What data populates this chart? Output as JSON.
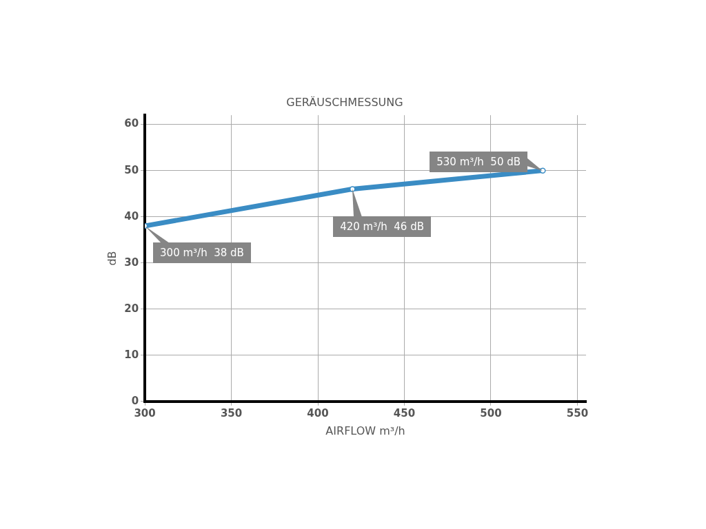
{
  "chart_data": {
    "type": "line",
    "title": "GERÄUSCHMESSUNG",
    "xlabel": "AIRFLOW m³/h",
    "ylabel": "dB",
    "x": [
      300,
      420,
      530
    ],
    "series": [
      {
        "color": "#3a8cc4",
        "values": [
          38,
          46,
          50
        ]
      }
    ],
    "xlim": [
      300,
      555
    ],
    "xticks": [
      300,
      350,
      400,
      450,
      500,
      550
    ],
    "ylim": [
      0,
      62
    ],
    "yticks": [
      0,
      10,
      20,
      30,
      40,
      50,
      60
    ],
    "grid": true,
    "legend": false,
    "marker": "circle",
    "line_style": "solid",
    "annotations": [
      {
        "text": "300 m³/h  38 dB",
        "x": 300,
        "y": 38
      },
      {
        "text": "420 m³/h  46 dB",
        "x": 420,
        "y": 46
      },
      {
        "text": "530 m³/h  50 dB",
        "x": 530,
        "y": 50
      }
    ]
  }
}
